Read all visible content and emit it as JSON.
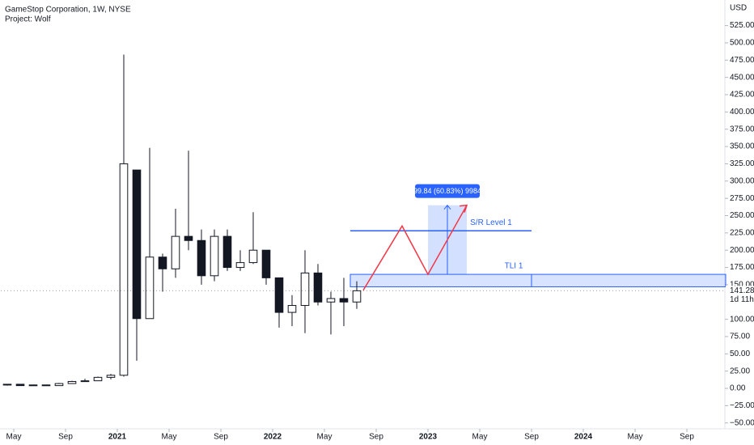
{
  "chart_data": {
    "type": "candlestick",
    "title": "GameStop Corporation, 1W, NYSE",
    "subtitle": "Project: Wolf",
    "currency": "USD",
    "up_color": "#ffffff",
    "down_color": "#131722",
    "wick_color": "#131722",
    "x": [
      "2020-04",
      "2020-05",
      "2020-06",
      "2020-07",
      "2020-08",
      "2020-09",
      "2020-10",
      "2020-11",
      "2020-12",
      "2021-01",
      "2021-02",
      "2021-03",
      "2021-04",
      "2021-05",
      "2021-06",
      "2021-07",
      "2021-08",
      "2021-09",
      "2021-10",
      "2021-11",
      "2021-12",
      "2022-01",
      "2022-02",
      "2022-03",
      "2022-04",
      "2022-05",
      "2022-06",
      "2022-07"
    ],
    "open": [
      5,
      6,
      4,
      5,
      4,
      7,
      10,
      11,
      16,
      19,
      316,
      101,
      190,
      173,
      220,
      214,
      163,
      220,
      175,
      182,
      200,
      160,
      110,
      120,
      167,
      125,
      130,
      125
    ],
    "high": [
      6,
      6,
      5,
      5,
      8,
      11,
      14,
      17,
      21,
      483,
      316,
      348,
      195,
      260,
      344,
      230,
      230,
      230,
      200,
      255,
      200,
      160,
      135,
      200,
      180,
      140,
      160,
      155
    ],
    "low": [
      4,
      4,
      4,
      4,
      4,
      7,
      10,
      11,
      13,
      17,
      40,
      101,
      140,
      160,
      200,
      150,
      155,
      170,
      170,
      180,
      150,
      88,
      90,
      80,
      120,
      78,
      90,
      115
    ],
    "close": [
      6,
      4,
      5,
      4,
      7,
      10,
      11,
      16,
      19,
      325,
      101,
      190,
      173,
      220,
      214,
      163,
      220,
      175,
      182,
      200,
      160,
      110,
      120,
      167,
      125,
      130,
      125,
      141.28
    ],
    "last_price": {
      "value": 141.28,
      "label": "141.28"
    },
    "countdown": "1d 11h",
    "xlim": [
      "2020-04",
      "2024-12"
    ],
    "xticks": [
      {
        "value": "2020-05",
        "label": "May"
      },
      {
        "value": "2020-09",
        "label": "Sep"
      },
      {
        "value": "2021-01",
        "label": "2021"
      },
      {
        "value": "2021-05",
        "label": "May"
      },
      {
        "value": "2021-09",
        "label": "Sep"
      },
      {
        "value": "2022-01",
        "label": "2022"
      },
      {
        "value": "2022-05",
        "label": "May"
      },
      {
        "value": "2022-09",
        "label": "Sep"
      },
      {
        "value": "2023-01",
        "label": "2023"
      },
      {
        "value": "2023-05",
        "label": "May"
      },
      {
        "value": "2023-09",
        "label": "Sep"
      },
      {
        "value": "2024-01",
        "label": "2024"
      },
      {
        "value": "2024-05",
        "label": "May"
      },
      {
        "value": "2024-09",
        "label": "Sep"
      }
    ],
    "ylim": [
      -58.5,
      562
    ],
    "yticks": [
      {
        "value": -50,
        "label": "−50.00"
      },
      {
        "value": -25,
        "label": "−25.00"
      },
      {
        "value": 0,
        "label": "0.00"
      },
      {
        "value": 25,
        "label": "25.00"
      },
      {
        "value": 50,
        "label": "50.00"
      },
      {
        "value": 75,
        "label": "75.00"
      },
      {
        "value": 100,
        "label": "100.00"
      },
      {
        "value": 150,
        "label": "150.00"
      },
      {
        "value": 175,
        "label": "175.00"
      },
      {
        "value": 200,
        "label": "200.00"
      },
      {
        "value": 225,
        "label": "225.00"
      },
      {
        "value": 250,
        "label": "250.00"
      },
      {
        "value": 275,
        "label": "275.00"
      },
      {
        "value": 300,
        "label": "300.00"
      },
      {
        "value": 325,
        "label": "325.00"
      },
      {
        "value": 350,
        "label": "350.00"
      },
      {
        "value": 375,
        "label": "375.00"
      },
      {
        "value": 400,
        "label": "400.00"
      },
      {
        "value": 425,
        "label": "425.00"
      },
      {
        "value": 450,
        "label": "450.00"
      },
      {
        "value": 475,
        "label": "475.00"
      },
      {
        "value": 500,
        "label": "500.00"
      },
      {
        "value": 525,
        "label": "525.00"
      }
    ],
    "drawings": {
      "sr_line": {
        "label": "S/R Level 1",
        "value": 228,
        "x": [
          "2022-07",
          "2023-09"
        ],
        "color": "#2962ff"
      },
      "tli_zone": {
        "label": "TLI 1",
        "low": 147,
        "high": 165,
        "x": [
          "2022-07",
          "2023-09",
          "2024-12"
        ],
        "color": "#2962ff"
      },
      "measure": {
        "label": "99.84 (60.83%) 9984",
        "low": 165,
        "high": 265,
        "x": [
          "2023-01",
          "2023-04"
        ],
        "color": "#2962ff"
      },
      "path": {
        "color": "#f23645",
        "x": [
          "2022-08",
          "2022-11",
          "2023-01",
          "2023-04"
        ],
        "values": [
          142,
          235,
          165,
          265
        ]
      }
    }
  }
}
